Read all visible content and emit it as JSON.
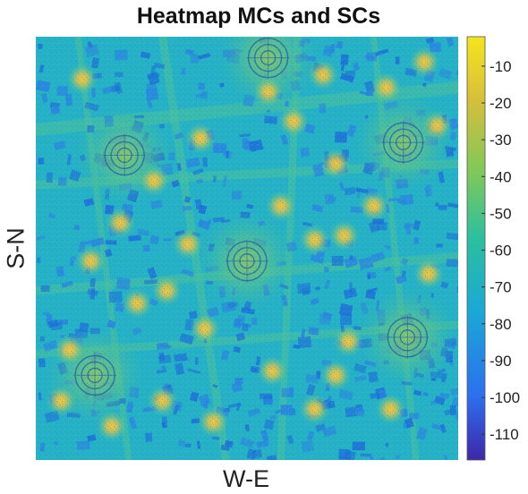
{
  "chart_data": {
    "type": "heatmap",
    "title": "Heatmap MCs and SCs",
    "xlabel": "W-E",
    "ylabel": "S-N",
    "colorbar": {
      "ticks": [
        -10,
        -20,
        -30,
        -40,
        -50,
        -60,
        -70,
        -80,
        -90,
        -100,
        -110
      ],
      "tick_labels": [
        "-10",
        "-20",
        "-30",
        "-40",
        "-50",
        "-60",
        "-70",
        "-80",
        "-90",
        "-100",
        "-110"
      ],
      "range": [
        -117,
        -2
      ],
      "colormap": [
        "#3e26a8",
        "#2c6ff0",
        "#1aa8d6",
        "#2bbfa0",
        "#7ec95a",
        "#d6bf3a",
        "#f4e51c"
      ]
    },
    "macro_cells": [
      {
        "x": 0.14,
        "y": 0.8,
        "value": -38
      },
      {
        "x": 0.5,
        "y": 0.53,
        "value": -38
      },
      {
        "x": 0.88,
        "y": 0.71,
        "value": -38
      },
      {
        "x": 0.21,
        "y": 0.28,
        "value": -38
      },
      {
        "x": 0.55,
        "y": 0.05,
        "value": -40
      },
      {
        "x": 0.87,
        "y": 0.25,
        "value": -40
      }
    ],
    "small_cells": [
      {
        "x": 0.18,
        "y": 0.92,
        "value": -25
      },
      {
        "x": 0.06,
        "y": 0.86,
        "value": -30
      },
      {
        "x": 0.3,
        "y": 0.86,
        "value": -32
      },
      {
        "x": 0.42,
        "y": 0.91,
        "value": -32
      },
      {
        "x": 0.66,
        "y": 0.88,
        "value": -30
      },
      {
        "x": 0.84,
        "y": 0.88,
        "value": -28
      },
      {
        "x": 0.56,
        "y": 0.79,
        "value": -25
      },
      {
        "x": 0.71,
        "y": 0.8,
        "value": -30
      },
      {
        "x": 0.08,
        "y": 0.74,
        "value": -30
      },
      {
        "x": 0.74,
        "y": 0.72,
        "value": -32
      },
      {
        "x": 0.4,
        "y": 0.69,
        "value": -30
      },
      {
        "x": 0.24,
        "y": 0.63,
        "value": -30
      },
      {
        "x": 0.31,
        "y": 0.6,
        "value": -32
      },
      {
        "x": 0.93,
        "y": 0.56,
        "value": -30
      },
      {
        "x": 0.13,
        "y": 0.53,
        "value": -30
      },
      {
        "x": 0.36,
        "y": 0.49,
        "value": -32
      },
      {
        "x": 0.66,
        "y": 0.48,
        "value": -30
      },
      {
        "x": 0.73,
        "y": 0.47,
        "value": -32
      },
      {
        "x": 0.2,
        "y": 0.44,
        "value": -30
      },
      {
        "x": 0.8,
        "y": 0.4,
        "value": -30
      },
      {
        "x": 0.58,
        "y": 0.4,
        "value": -32
      },
      {
        "x": 0.28,
        "y": 0.34,
        "value": -32
      },
      {
        "x": 0.71,
        "y": 0.3,
        "value": -32
      },
      {
        "x": 0.39,
        "y": 0.24,
        "value": -28
      },
      {
        "x": 0.95,
        "y": 0.21,
        "value": -30
      },
      {
        "x": 0.61,
        "y": 0.2,
        "value": -28
      },
      {
        "x": 0.11,
        "y": 0.1,
        "value": -30
      },
      {
        "x": 0.55,
        "y": 0.13,
        "value": -32
      },
      {
        "x": 0.68,
        "y": 0.09,
        "value": -30
      },
      {
        "x": 0.83,
        "y": 0.12,
        "value": -30
      },
      {
        "x": 0.92,
        "y": 0.06,
        "value": -30
      }
    ],
    "background_value": -68,
    "road_value": -55,
    "building_value": -95
  }
}
